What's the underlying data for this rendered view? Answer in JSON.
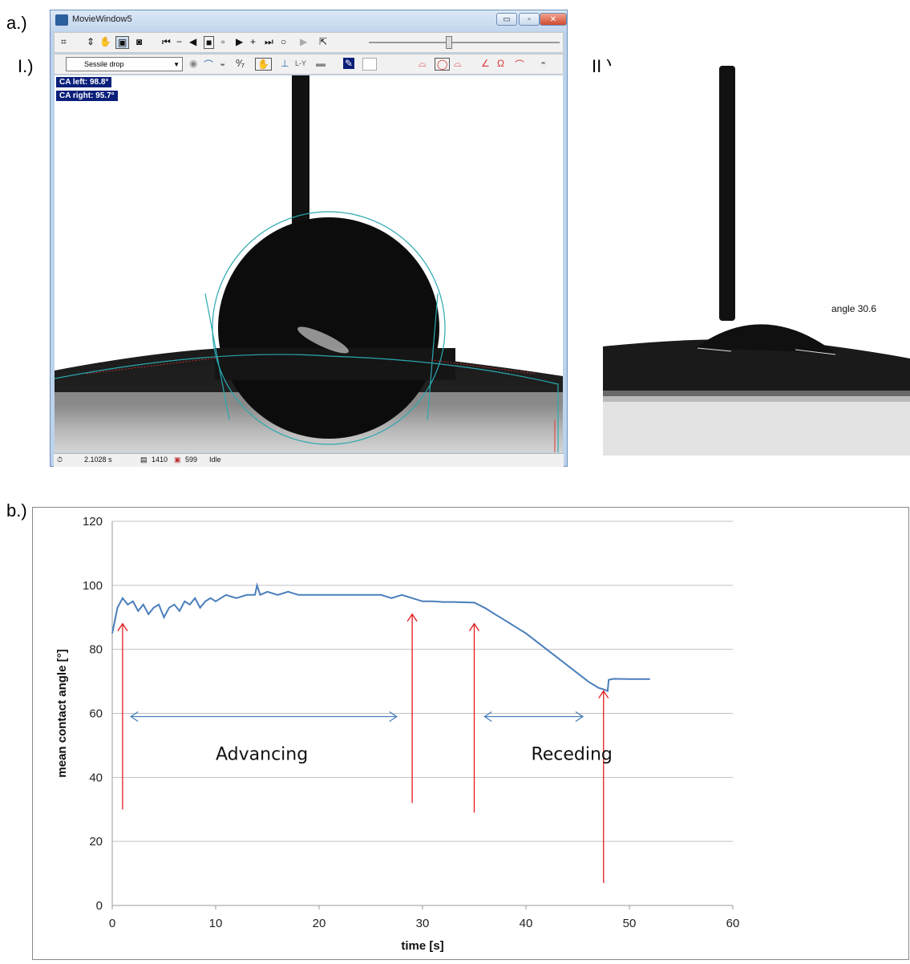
{
  "labels": {
    "a": "a.)",
    "i": "I.)",
    "ii": "II.)",
    "b": "b.)"
  },
  "window": {
    "title": "MovieWindow5",
    "mode_select": "Sessile drop",
    "toolbar_ly": "L-Y",
    "ca_left": "CA left:  98.8°",
    "ca_right": "CA right: 95.7°",
    "status": {
      "time": "2.1028 s",
      "frame": "1410",
      "count": "599",
      "state": "Idle"
    }
  },
  "image2": {
    "angle_label": "angle 30.6"
  },
  "colors": {
    "line": "#4a7ebb",
    "arrow": "#e31a1c",
    "fit": "#2aa8b0",
    "badge": "#0a1f7a"
  },
  "chart_data": {
    "type": "line",
    "title": "",
    "xlabel": "time [s]",
    "ylabel": "mean contact angle [°]",
    "xlim": [
      0,
      60
    ],
    "ylim": [
      0,
      120
    ],
    "xticks": [
      0,
      10,
      20,
      30,
      40,
      50,
      60
    ],
    "yticks": [
      0,
      20,
      40,
      60,
      80,
      100,
      120
    ],
    "grid": "horizontal",
    "series": [
      {
        "name": "",
        "x": [
          0,
          0.5,
          1,
          1.5,
          2,
          2.5,
          3,
          3.5,
          4,
          4.5,
          5,
          5.5,
          6,
          6.5,
          7,
          7.5,
          8,
          8.5,
          9,
          9.5,
          10,
          11,
          12,
          13,
          13.8,
          14,
          14.3,
          15,
          16,
          17,
          18,
          19,
          20,
          21,
          22,
          23,
          24,
          25,
          26,
          27,
          28,
          29,
          30,
          31,
          32,
          33,
          34,
          35,
          36,
          37,
          38,
          39,
          40,
          41,
          42,
          43,
          44,
          45,
          46,
          47,
          47.5,
          47.9,
          48,
          48.5,
          50,
          52
        ],
        "y": [
          85,
          93,
          96,
          94,
          95,
          92,
          94,
          91,
          93,
          94,
          90,
          93,
          94,
          92,
          95,
          94,
          96,
          93,
          95,
          96,
          95,
          97,
          96,
          97,
          97,
          100,
          97,
          98,
          97,
          98,
          97,
          97,
          97,
          97,
          97,
          97,
          97,
          97,
          97,
          96,
          97,
          96,
          95,
          95,
          94.8,
          94.8,
          94.7,
          94.6,
          93,
          91,
          89,
          87,
          85,
          82.5,
          80,
          77.5,
          75,
          72.5,
          70,
          68,
          67.5,
          67,
          70.5,
          70.8,
          70.7,
          70.7
        ]
      }
    ],
    "annotations": [
      {
        "type": "arrow-up",
        "x": 1,
        "y_from": 30,
        "y_to": 88
      },
      {
        "type": "arrow-up",
        "x": 29,
        "y_from": 32,
        "y_to": 91
      },
      {
        "type": "arrow-up",
        "x": 35,
        "y_from": 29,
        "y_to": 88
      },
      {
        "type": "arrow-up",
        "x": 47.5,
        "y_from": 7,
        "y_to": 67
      },
      {
        "type": "double-arrow",
        "x_from": 1.8,
        "x_to": 27.5,
        "y": 59
      },
      {
        "type": "double-arrow",
        "x_from": 36,
        "x_to": 45.5,
        "y": 59
      },
      {
        "type": "text",
        "x": 10,
        "y": 45.5,
        "text": "Advancing"
      },
      {
        "type": "text",
        "x": 40.5,
        "y": 45.5,
        "text": "Receding"
      }
    ]
  }
}
